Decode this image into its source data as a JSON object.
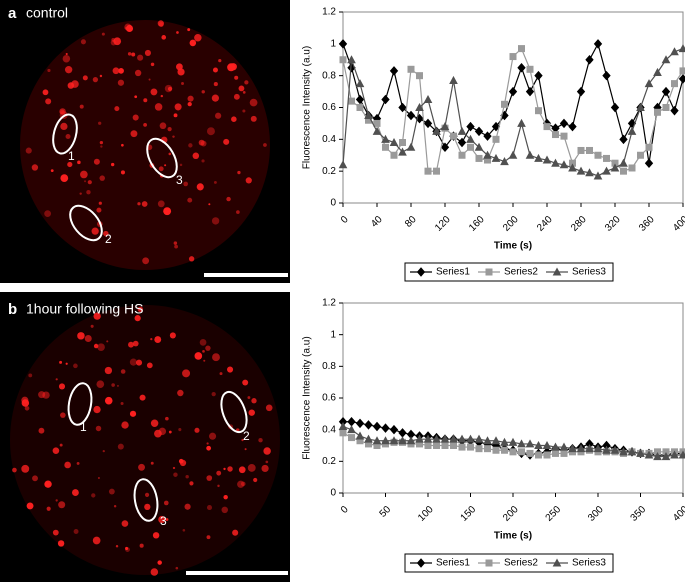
{
  "panels": [
    {
      "letter": "a",
      "caption": "control",
      "rois": [
        "1",
        "2",
        "3"
      ]
    },
    {
      "letter": "b",
      "caption": "1hour following HS",
      "rois": [
        "1",
        "2",
        "3"
      ]
    }
  ],
  "chart_data": [
    {
      "type": "line",
      "x_label": "Time (s)",
      "y_label": "Fluorescence Intensity (a.u)",
      "x": [
        0,
        10,
        20,
        30,
        40,
        50,
        60,
        70,
        80,
        90,
        100,
        110,
        120,
        130,
        140,
        150,
        160,
        170,
        180,
        190,
        200,
        210,
        220,
        230,
        240,
        250,
        260,
        270,
        280,
        290,
        300,
        310,
        320,
        330,
        340,
        350,
        360,
        370,
        380,
        390,
        400
      ],
      "xlim": [
        0,
        400
      ],
      "xticks": [
        0,
        40,
        80,
        120,
        160,
        200,
        240,
        280,
        320,
        360,
        400
      ],
      "ylim": [
        0,
        1.2
      ],
      "yticks": [
        0,
        0.2,
        0.4,
        0.6,
        0.8,
        1,
        1.2
      ],
      "legend": "bottom",
      "series": [
        {
          "name": "Series1",
          "color": "#000000",
          "marker": "diamond",
          "values": [
            1.0,
            0.85,
            0.65,
            0.55,
            0.53,
            0.65,
            0.83,
            0.6,
            0.55,
            0.53,
            0.5,
            0.45,
            0.35,
            0.42,
            0.38,
            0.48,
            0.45,
            0.42,
            0.48,
            0.55,
            0.7,
            0.85,
            0.7,
            0.8,
            0.5,
            0.47,
            0.5,
            0.48,
            0.7,
            0.9,
            1.0,
            0.8,
            0.6,
            0.4,
            0.5,
            0.6,
            0.25,
            0.6,
            0.7,
            0.58,
            0.78
          ]
        },
        {
          "name": "Series2",
          "color": "#9a9a9a",
          "marker": "square",
          "values": [
            0.9,
            0.64,
            0.6,
            0.52,
            0.5,
            0.35,
            0.3,
            0.38,
            0.84,
            0.8,
            0.2,
            0.2,
            0.47,
            0.42,
            0.3,
            0.35,
            0.28,
            0.27,
            0.4,
            0.62,
            0.92,
            0.97,
            0.84,
            0.58,
            0.48,
            0.43,
            0.42,
            0.25,
            0.33,
            0.33,
            0.3,
            0.28,
            0.25,
            0.2,
            0.22,
            0.3,
            0.35,
            0.57,
            0.6,
            0.75,
            0.83
          ]
        },
        {
          "name": "Series3",
          "color": "#505050",
          "marker": "triangle",
          "values": [
            0.24,
            0.9,
            0.75,
            0.55,
            0.45,
            0.4,
            0.38,
            0.32,
            0.35,
            0.6,
            0.65,
            0.45,
            0.48,
            0.77,
            0.45,
            0.4,
            0.35,
            0.3,
            0.28,
            0.26,
            0.3,
            0.5,
            0.3,
            0.28,
            0.27,
            0.25,
            0.24,
            0.22,
            0.2,
            0.19,
            0.17,
            0.2,
            0.22,
            0.25,
            0.45,
            0.6,
            0.75,
            0.82,
            0.9,
            0.95,
            0.97
          ]
        }
      ]
    },
    {
      "type": "line",
      "x_label": "Time (s)",
      "y_label": "Fluorescence Intensity (a.u)",
      "x": [
        0,
        10,
        20,
        30,
        40,
        50,
        60,
        70,
        80,
        90,
        100,
        110,
        120,
        130,
        140,
        150,
        160,
        170,
        180,
        190,
        200,
        210,
        220,
        230,
        240,
        250,
        260,
        270,
        280,
        290,
        300,
        310,
        320,
        330,
        340,
        350,
        360,
        370,
        380,
        390,
        400
      ],
      "xlim": [
        0,
        400
      ],
      "xticks": [
        0,
        50,
        100,
        150,
        200,
        250,
        300,
        350,
        400
      ],
      "ylim": [
        0,
        1.2
      ],
      "yticks": [
        0,
        0.2,
        0.4,
        0.6,
        0.8,
        1,
        1.2
      ],
      "legend": "bottom",
      "series": [
        {
          "name": "Series1",
          "color": "#000000",
          "marker": "diamond",
          "values": [
            0.45,
            0.45,
            0.44,
            0.43,
            0.42,
            0.41,
            0.4,
            0.38,
            0.37,
            0.36,
            0.36,
            0.35,
            0.34,
            0.34,
            0.33,
            0.33,
            0.32,
            0.31,
            0.3,
            0.28,
            0.27,
            0.25,
            0.24,
            0.25,
            0.26,
            0.28,
            0.27,
            0.28,
            0.29,
            0.31,
            0.29,
            0.3,
            0.28,
            0.27,
            0.26,
            0.25,
            0.25,
            0.24,
            0.24,
            0.25,
            0.25
          ]
        },
        {
          "name": "Series2",
          "color": "#9a9a9a",
          "marker": "square",
          "values": [
            0.38,
            0.35,
            0.33,
            0.31,
            0.3,
            0.31,
            0.32,
            0.32,
            0.31,
            0.31,
            0.3,
            0.3,
            0.3,
            0.3,
            0.29,
            0.29,
            0.28,
            0.28,
            0.27,
            0.27,
            0.26,
            0.26,
            0.25,
            0.24,
            0.24,
            0.25,
            0.25,
            0.26,
            0.26,
            0.27,
            0.26,
            0.26,
            0.26,
            0.25,
            0.26,
            0.25,
            0.25,
            0.26,
            0.26,
            0.26,
            0.26
          ]
        },
        {
          "name": "Series3",
          "color": "#505050",
          "marker": "triangle",
          "values": [
            0.42,
            0.4,
            0.36,
            0.34,
            0.33,
            0.33,
            0.33,
            0.33,
            0.33,
            0.34,
            0.34,
            0.34,
            0.34,
            0.34,
            0.34,
            0.34,
            0.34,
            0.33,
            0.33,
            0.32,
            0.32,
            0.31,
            0.31,
            0.3,
            0.3,
            0.29,
            0.29,
            0.28,
            0.28,
            0.28,
            0.28,
            0.27,
            0.27,
            0.26,
            0.26,
            0.25,
            0.24,
            0.23,
            0.23,
            0.24,
            0.24
          ]
        }
      ]
    }
  ]
}
